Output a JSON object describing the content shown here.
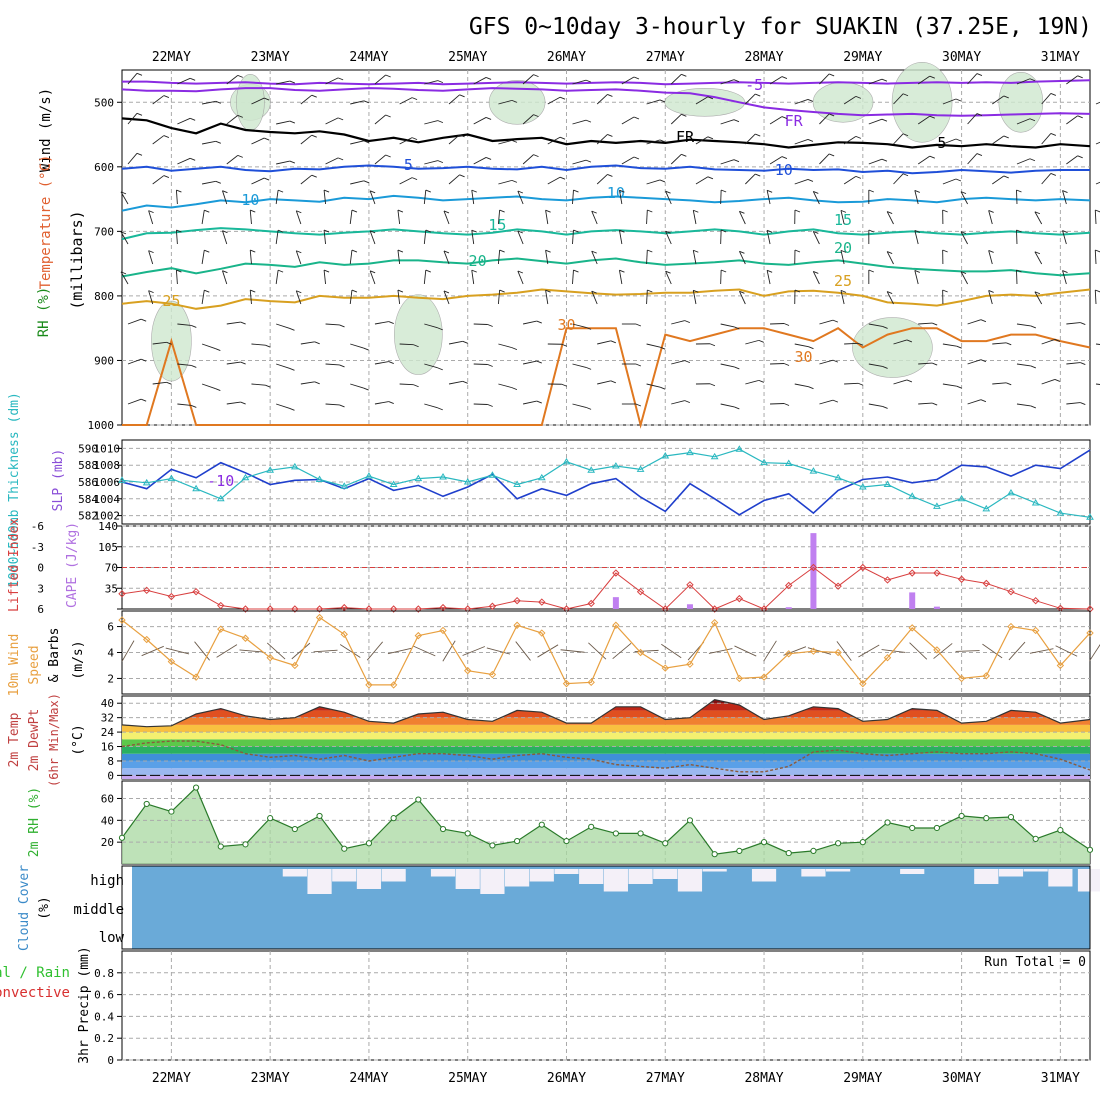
{
  "header": {
    "title": "GFS 0~10day 3-hourly for SUAKIN (37.25E, 19N)"
  },
  "time_axis": {
    "labels": [
      "22MAY",
      "23MAY",
      "24MAY",
      "25MAY",
      "26MAY",
      "27MAY",
      "28MAY",
      "29MAY",
      "30MAY",
      "31MAY"
    ],
    "start_day": 21.5,
    "end_day": 31.3
  },
  "colors": {
    "t_minus5": "#8a2be2",
    "t_zero": "#000000",
    "t5": "#1f4fd8",
    "t10": "#1a9ad8",
    "t15": "#19b89a",
    "t20": "#19b48a",
    "t25": "#d8a020",
    "t30": "#e07820",
    "t35": "#e02040",
    "thickness": "#1f3fcc",
    "slp": "#2ab8c0",
    "lifted_index": "#d84040",
    "cape": "#c080f0",
    "wind": "#e8a040",
    "dewpoint": "#8b5a3c",
    "rh": "#30b030",
    "cloud": "#6aaad8"
  },
  "chart_data": [
    {
      "id": "upper-air",
      "type": "line",
      "title": "",
      "ylabel_parts": [
        "RH (%)",
        "Temperature (°C)",
        "Wind (m/s)",
        "(millibars)"
      ],
      "yticks": [
        500,
        600,
        700,
        800,
        900,
        1000
      ],
      "ylim": [
        1000,
        450
      ],
      "x": [
        21.5,
        21.75,
        22.0,
        22.25,
        22.5,
        22.75,
        23.0,
        23.25,
        23.5,
        23.75,
        24.0,
        24.25,
        24.5,
        24.75,
        25.0,
        25.25,
        25.5,
        25.75,
        26.0,
        26.25,
        26.5,
        26.75,
        27.0,
        27.25,
        27.5,
        27.75,
        28.0,
        28.25,
        28.5,
        28.75,
        29.0,
        29.25,
        29.5,
        29.75,
        30.0,
        30.25,
        30.5,
        30.75,
        31.0,
        31.3
      ],
      "isotherms": [
        {
          "name": "-10",
          "label_at": [
            27.8,
            477
          ],
          "values": [
            468,
            468,
            470,
            471,
            470,
            469,
            471,
            472,
            470,
            471,
            472,
            471,
            470,
            472,
            471,
            470,
            469,
            470,
            471,
            470,
            469,
            470,
            472,
            471,
            470,
            469,
            470,
            471,
            470,
            469,
            470,
            471,
            470,
            469,
            470,
            469,
            470,
            468,
            467,
            466
          ]
        },
        {
          "name": "-5",
          "label_at": [
            22.5,
            474
          ],
          "values": [
            480,
            482,
            482,
            483,
            480,
            478,
            478,
            481,
            482,
            480,
            478,
            479,
            481,
            482,
            480,
            478,
            479,
            480,
            482,
            481,
            480,
            482,
            485,
            486,
            492,
            500,
            508,
            512,
            515,
            518,
            520,
            519,
            518,
            520,
            521,
            520,
            519,
            518,
            517,
            518
          ]
        },
        {
          "name": "0",
          "label_at": [
            27.2,
            566
          ],
          "values": [
            525,
            528,
            540,
            548,
            533,
            543,
            546,
            548,
            545,
            550,
            560,
            555,
            562,
            555,
            550,
            560,
            557,
            555,
            565,
            560,
            563,
            560,
            563,
            558,
            560,
            562,
            565,
            570,
            566,
            562,
            563,
            565,
            570,
            566,
            568,
            565,
            568,
            570,
            565,
            568
          ]
        },
        {
          "name": "5",
          "label_at": [
            24.4,
            599
          ],
          "values": [
            603,
            600,
            606,
            603,
            600,
            605,
            607,
            603,
            604,
            600,
            598,
            600,
            603,
            602,
            600,
            603,
            604,
            600,
            605,
            600,
            598,
            602,
            603,
            600,
            604,
            605,
            606,
            603,
            605,
            604,
            608,
            606,
            610,
            608,
            605,
            607,
            609,
            606,
            605,
            605
          ]
        },
        {
          "name": "10",
          "label_at": [
            22.8,
            654
          ],
          "values": [
            668,
            660,
            663,
            658,
            652,
            655,
            650,
            652,
            654,
            648,
            650,
            645,
            648,
            652,
            650,
            648,
            646,
            650,
            652,
            648,
            646,
            648,
            650,
            652,
            655,
            653,
            650,
            648,
            652,
            655,
            654,
            650,
            652,
            655,
            650,
            648,
            650,
            652,
            650,
            652
          ]
        },
        {
          "name": "15",
          "label_at": [
            25.3,
            700
          ],
          "values": [
            712,
            703,
            702,
            698,
            695,
            697,
            700,
            703,
            705,
            702,
            700,
            697,
            700,
            703,
            705,
            702,
            697,
            700,
            705,
            700,
            698,
            700,
            703,
            700,
            697,
            700,
            705,
            700,
            697,
            703,
            705,
            702,
            700,
            703,
            705,
            702,
            700,
            703,
            705,
            702
          ]
        },
        {
          "name": "20",
          "label_at": [
            25.1,
            740
          ],
          "values": [
            770,
            763,
            757,
            765,
            758,
            750,
            752,
            755,
            748,
            752,
            750,
            745,
            745,
            748,
            750,
            745,
            742,
            746,
            750,
            745,
            742,
            748,
            752,
            750,
            748,
            745,
            750,
            752,
            748,
            745,
            750,
            755,
            758,
            760,
            762,
            762,
            760,
            765,
            768,
            765
          ]
        },
        {
          "name": "25",
          "label_at": [
            22.0,
            812
          ],
          "values": [
            812,
            808,
            812,
            820,
            815,
            805,
            808,
            810,
            800,
            803,
            803,
            800,
            803,
            805,
            800,
            798,
            795,
            790,
            793,
            796,
            798,
            797,
            795,
            795,
            792,
            790,
            800,
            793,
            792,
            795,
            800,
            810,
            812,
            815,
            808,
            800,
            798,
            800,
            795,
            790
          ]
        },
        {
          "name": "30",
          "label_at": [
            26.1,
            860
          ],
          "values": [
            1000,
            1000,
            870,
            1000,
            1000,
            1000,
            1000,
            1000,
            1000,
            1000,
            1000,
            1000,
            1000,
            1000,
            1000,
            1000,
            1000,
            1000,
            850,
            850,
            850,
            1000,
            860,
            870,
            860,
            850,
            850,
            860,
            870,
            850,
            880,
            860,
            850,
            850,
            870,
            870,
            860,
            860,
            870,
            880
          ]
        }
      ],
      "isotherm_labels": [
        "-10",
        "-5",
        "FR",
        "FR",
        "5",
        "5",
        "10",
        "10",
        "10",
        "15",
        "15",
        "20",
        "20",
        "25",
        "25",
        "30",
        "30",
        "30"
      ]
    },
    {
      "id": "thickness-slp",
      "type": "line",
      "ylabel": "1000~500mb Thickness (dm)",
      "ylabel2": "SLP (mb)",
      "left_ticks": [
        582,
        584,
        586,
        588,
        590
      ],
      "right_ticks": [
        1002,
        1004,
        1006,
        1008,
        1010
      ],
      "left_lim": [
        581,
        591
      ],
      "right_lim": [
        1001,
        1011
      ],
      "series": [
        {
          "key": "thickness",
          "values": [
            586.0,
            585.2,
            587.5,
            586.5,
            588.3,
            587.1,
            585.7,
            586.2,
            586.3,
            585.2,
            586.4,
            585.0,
            585.6,
            584.3,
            585.4,
            586.9,
            584.0,
            585.2,
            584.4,
            585.8,
            586.4,
            584.2,
            582.5,
            585.8,
            584.0,
            582.1,
            583.8,
            584.6,
            582.3,
            585.0,
            586.3,
            586.6,
            585.9,
            586.3,
            588.0,
            587.8,
            586.7,
            588.0,
            587.6,
            589.8
          ]
        },
        {
          "key": "slp",
          "values": [
            1006.2,
            1005.9,
            1006.4,
            1005.2,
            1004.0,
            1006.5,
            1007.4,
            1007.8,
            1006.3,
            1005.5,
            1006.7,
            1005.7,
            1006.4,
            1006.6,
            1006.0,
            1006.8,
            1005.7,
            1006.5,
            1008.4,
            1007.4,
            1007.9,
            1007.5,
            1009.1,
            1009.5,
            1009.0,
            1009.9,
            1008.3,
            1008.2,
            1007.3,
            1006.5,
            1005.4,
            1005.7,
            1004.3,
            1003.1,
            1004.0,
            1002.8,
            1004.7,
            1003.5,
            1002.3,
            1001.8
          ]
        }
      ]
    },
    {
      "id": "lifted-cape",
      "type": "bar",
      "ylabel": "Lifted Index",
      "ylabel2": "CAPE (J/kg)",
      "li_ticks": [
        "6",
        "3",
        "0",
        "-3",
        "-6"
      ],
      "cape_ticks": [
        "35",
        "70",
        "105",
        "140"
      ],
      "li_lim": [
        6,
        -6
      ],
      "cape_lim": [
        0,
        140
      ],
      "lifted_index": [
        3.8,
        3.3,
        4.2,
        3.5,
        5.5,
        6,
        6,
        6,
        6,
        5.8,
        6,
        6,
        6,
        5.8,
        6,
        5.6,
        4.8,
        5.0,
        6,
        5.2,
        0.8,
        3.5,
        6,
        2.5,
        6,
        4.5,
        6,
        2.6,
        0.0,
        2.7,
        0.0,
        1.8,
        0.8,
        0.8,
        1.7,
        2.3,
        3.5,
        4.8,
        5.9,
        6
      ],
      "cape": [
        0,
        0,
        0,
        0,
        0,
        0,
        0,
        0,
        0,
        0,
        0,
        0,
        0,
        0,
        0,
        0,
        0,
        0,
        0,
        0,
        20,
        0,
        0,
        8,
        0,
        0,
        0,
        3,
        128,
        0,
        0,
        0,
        28,
        4,
        0,
        0,
        0,
        0,
        0,
        0
      ]
    },
    {
      "id": "wind10m",
      "type": "line",
      "ylabel": "10m Wind Speed (m/s) & Barbs",
      "yticks": [
        2,
        4,
        6
      ],
      "ylim": [
        0.8,
        7.2
      ],
      "values": [
        6.5,
        5.0,
        3.3,
        2.1,
        5.8,
        5.1,
        3.6,
        3.0,
        6.7,
        5.4,
        1.5,
        1.5,
        5.3,
        5.7,
        2.6,
        2.3,
        6.1,
        5.5,
        1.6,
        1.7,
        6.1,
        4.0,
        2.8,
        3.1,
        6.3,
        2.0,
        2.1,
        3.9,
        4.1,
        4.0,
        1.6,
        3.6,
        5.9,
        4.2,
        2.0,
        2.2,
        6.0,
        5.7,
        3.0,
        5.5
      ]
    },
    {
      "id": "temp-dewpt",
      "type": "area",
      "ylabel": "2m Temp 2m DewPt (6hr Min/Max) (°C)",
      "yticks": [
        0,
        8,
        16,
        24,
        32,
        40
      ],
      "ylim": [
        -2,
        44
      ],
      "temp": [
        28,
        27,
        27.5,
        34,
        37,
        33,
        31,
        32,
        38,
        35,
        30,
        29,
        34,
        35,
        31,
        30,
        36,
        35,
        29,
        29,
        38,
        38,
        31,
        32,
        42,
        39,
        31,
        33,
        38,
        37,
        30,
        31,
        37,
        36,
        29,
        30,
        36,
        35,
        29,
        31
      ],
      "dewpoint": [
        16,
        18,
        19,
        19,
        17,
        12,
        10,
        11,
        9,
        11,
        8,
        10,
        12,
        12,
        11,
        9,
        11,
        12,
        10,
        9,
        6,
        5,
        4,
        6,
        4,
        2,
        2,
        5,
        13,
        14,
        12,
        11,
        12,
        13,
        12,
        12,
        13,
        12,
        9,
        3
      ]
    },
    {
      "id": "rh2m",
      "type": "area",
      "ylabel": "2m RH (%)",
      "yticks": [
        20,
        40,
        60
      ],
      "ylim": [
        0,
        76
      ],
      "values": [
        24,
        55,
        48,
        70,
        16,
        18,
        42,
        32,
        44,
        14,
        19,
        42,
        59,
        32,
        28,
        17,
        21,
        36,
        21,
        34,
        28,
        28,
        19,
        40,
        9,
        12,
        20,
        10,
        12,
        19,
        20,
        38,
        33,
        33,
        44,
        42,
        43,
        23,
        31,
        13
      ]
    },
    {
      "id": "cloud",
      "type": "bar",
      "ylabel": "Cloud Cover (%)",
      "yticks": [
        "high",
        "middle",
        "low"
      ],
      "high": [
        0,
        0,
        0,
        0,
        0,
        0,
        0,
        0.3,
        1,
        0.5,
        0.8,
        0.5,
        0,
        0.3,
        0.8,
        1,
        0.7,
        0.5,
        0.2,
        0.6,
        0.9,
        0.6,
        0.4,
        0.9,
        0.1,
        0,
        0.5,
        0,
        0.3,
        0.1,
        0,
        0,
        0.2,
        0,
        0,
        0.6,
        0.3,
        0.1,
        0.7,
        0.9
      ]
    },
    {
      "id": "precip",
      "type": "bar",
      "ylabel": "3hr Precip (mm)",
      "ylabel_left": [
        "Total / Rain",
        "Convective"
      ],
      "yticks": [
        "0",
        "0.2",
        "0.4",
        "0.6",
        "0.8"
      ],
      "ylim": [
        0,
        1
      ],
      "run_total": "Run Total = 0",
      "values": []
    }
  ]
}
